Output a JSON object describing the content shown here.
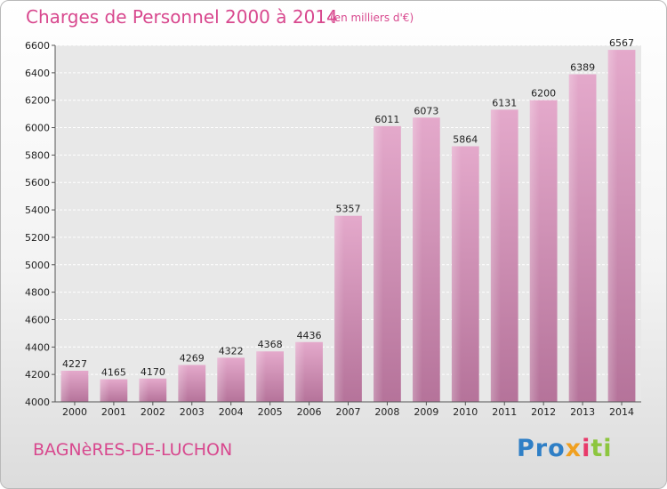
{
  "title": "Charges de Personnel 2000 à 2014",
  "subtitle": "(en milliers d'€)",
  "commune": "BAGNèRES-DE-LUCHON",
  "logo": {
    "parts": [
      "Pro",
      "x",
      "i",
      "ti"
    ]
  },
  "colors": {
    "bar_top": "#e4a9cb",
    "bar_bottom": "#b5739a",
    "text_accent": "#d8488e"
  },
  "chart_data": {
    "type": "bar",
    "title": "Charges de Personnel 2000 à 2014",
    "subtitle": "(en milliers d'€)",
    "categories": [
      "2000",
      "2001",
      "2002",
      "2003",
      "2004",
      "2005",
      "2006",
      "2007",
      "2008",
      "2009",
      "2010",
      "2011",
      "2012",
      "2013",
      "2014"
    ],
    "values": [
      4227,
      4165,
      4170,
      4269,
      4322,
      4368,
      4436,
      5357,
      6011,
      6073,
      5864,
      6131,
      6200,
      6389,
      6567
    ],
    "ylim": [
      4000,
      6600
    ],
    "yticks": [
      4000,
      4200,
      4400,
      4600,
      4800,
      5000,
      5200,
      5400,
      5600,
      5800,
      6000,
      6200,
      6400,
      6600
    ],
    "grid": true,
    "xlabel": "",
    "ylabel": ""
  }
}
